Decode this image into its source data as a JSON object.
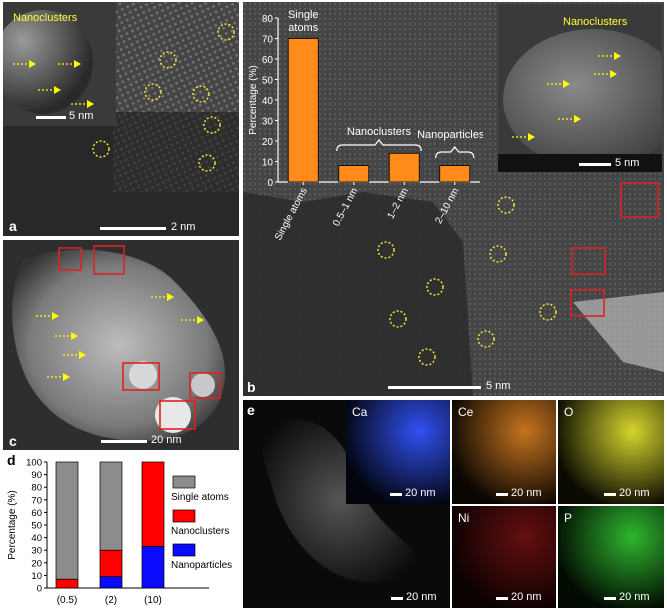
{
  "panel_labels": {
    "a": "a",
    "b": "b",
    "c": "c",
    "d": "d",
    "e": "e"
  },
  "panel_a": {
    "inset_title": "Nanoclusters",
    "inset_scale": "5 nm",
    "scale": "2 nm"
  },
  "panel_b": {
    "inset_title": "Nanoclusters",
    "inset_scale": "5 nm",
    "scale": "5 nm"
  },
  "panel_c": {
    "scale": "20 nm"
  },
  "panel_e": {
    "main_scale": "20 nm",
    "maps": [
      {
        "label": "Ca",
        "scale": "20 nm",
        "color": "#3355ff"
      },
      {
        "label": "Ce",
        "scale": "20 nm",
        "color": "#d07a20"
      },
      {
        "label": "O",
        "scale": "20 nm",
        "color": "#e0e030"
      },
      {
        "label": "Ni",
        "scale": "20 nm",
        "color": "#e02020"
      },
      {
        "label": "P",
        "scale": "20 nm",
        "color": "#30c030"
      }
    ]
  },
  "chart_data": [
    {
      "type": "bar",
      "title": "",
      "ylabel": "Percentage (%)",
      "ylim": [
        0,
        80
      ],
      "yticks": [
        0,
        10,
        20,
        30,
        40,
        50,
        60,
        70,
        80
      ],
      "categories": [
        "Single atoms",
        "0.5–1 nm",
        "1–2 nm",
        "2–10 nm"
      ],
      "values": [
        70,
        8,
        14,
        8
      ],
      "bar_color": "#ff8c1a",
      "annotations": [
        "Single atoms",
        "Nanoclusters",
        "Nanoparticles"
      ]
    },
    {
      "type": "bar",
      "stacked": true,
      "ylabel": "Percentage (%)",
      "ylim": [
        0,
        100
      ],
      "yticks": [
        0,
        10,
        20,
        30,
        40,
        50,
        60,
        70,
        80,
        90,
        100
      ],
      "categories": [
        "(0.5)",
        "(2)",
        "(10)"
      ],
      "series": [
        {
          "name": "Nanoparticles",
          "values": [
            0,
            9,
            33
          ],
          "color": "#0a0aff"
        },
        {
          "name": "Nanoclusters",
          "values": [
            7,
            21,
            67
          ],
          "color": "#ff0000"
        },
        {
          "name": "Single atoms",
          "values": [
            93,
            70,
            0
          ],
          "color": "#8c8c8c"
        }
      ],
      "legend": [
        "Single atoms",
        "Nanoclusters",
        "Nanoparticles"
      ]
    }
  ]
}
